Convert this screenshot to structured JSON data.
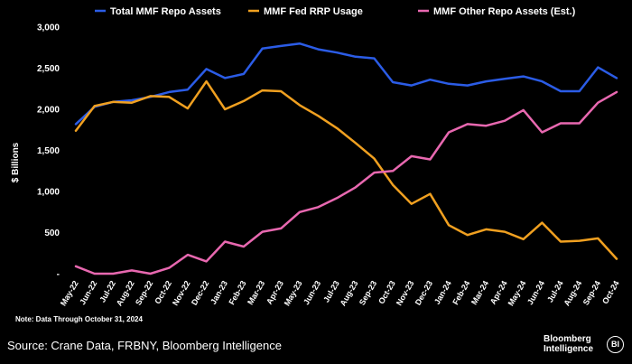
{
  "chart_data": {
    "type": "line",
    "title": "",
    "xlabel": "",
    "ylabel": "$ Billions",
    "ylim": [
      0,
      3000
    ],
    "yticks": [
      0,
      500,
      1000,
      1500,
      2000,
      2500,
      3000
    ],
    "ytick_labels": [
      "-",
      "500",
      "1,000",
      "1,500",
      "2,000",
      "2,500",
      "3,000"
    ],
    "grid": false,
    "legend_position": "top",
    "categories": [
      "May-22",
      "Jun-22",
      "Jul-22",
      "Aug-22",
      "Sep-22",
      "Oct-22",
      "Nov-22",
      "Dec-22",
      "Jan-23",
      "Feb-23",
      "Mar-23",
      "Apr-23",
      "May-23",
      "Jun-23",
      "Jul-23",
      "Aug-23",
      "Sep-23",
      "Oct-23",
      "Nov-23",
      "Dec-23",
      "Jan-24",
      "Feb-24",
      "Mar-24",
      "Apr-24",
      "May-24",
      "Jun-24",
      "Jul-24",
      "Aug-24",
      "Sep-24",
      "Oct-24"
    ],
    "series": [
      {
        "name": "Total MMF Repo Assets",
        "color": "#2b5ce6",
        "values": [
          1820,
          2030,
          2090,
          2110,
          2150,
          2210,
          2240,
          2490,
          2380,
          2430,
          2740,
          2770,
          2800,
          2730,
          2690,
          2640,
          2620,
          2330,
          2290,
          2360,
          2310,
          2290,
          2340,
          2370,
          2400,
          2340,
          2220,
          2220,
          2510,
          2380
        ]
      },
      {
        "name": "MMF Fed RRP Usage",
        "color": "#f0a020",
        "values": [
          1740,
          2040,
          2090,
          2080,
          2160,
          2150,
          2010,
          2340,
          2000,
          2100,
          2230,
          2220,
          2050,
          1920,
          1770,
          1590,
          1400,
          1080,
          850,
          970,
          590,
          470,
          540,
          510,
          420,
          620,
          390,
          400,
          430,
          180
        ]
      },
      {
        "name": "MMF Other Repo Assets (Est.)",
        "color": "#e868b0",
        "values": [
          90,
          0,
          0,
          40,
          0,
          70,
          230,
          150,
          390,
          330,
          510,
          550,
          750,
          810,
          920,
          1050,
          1230,
          1250,
          1430,
          1390,
          1720,
          1820,
          1800,
          1860,
          1990,
          1720,
          1830,
          1830,
          2080,
          2210
        ]
      }
    ]
  },
  "note": "Note: Data Through October 31, 2024",
  "source": "Source: Crane Data, FRBNY, Bloomberg Intelligence",
  "brand": {
    "line1": "Bloomberg",
    "line2": "Intelligence",
    "logo_text": "BI"
  }
}
